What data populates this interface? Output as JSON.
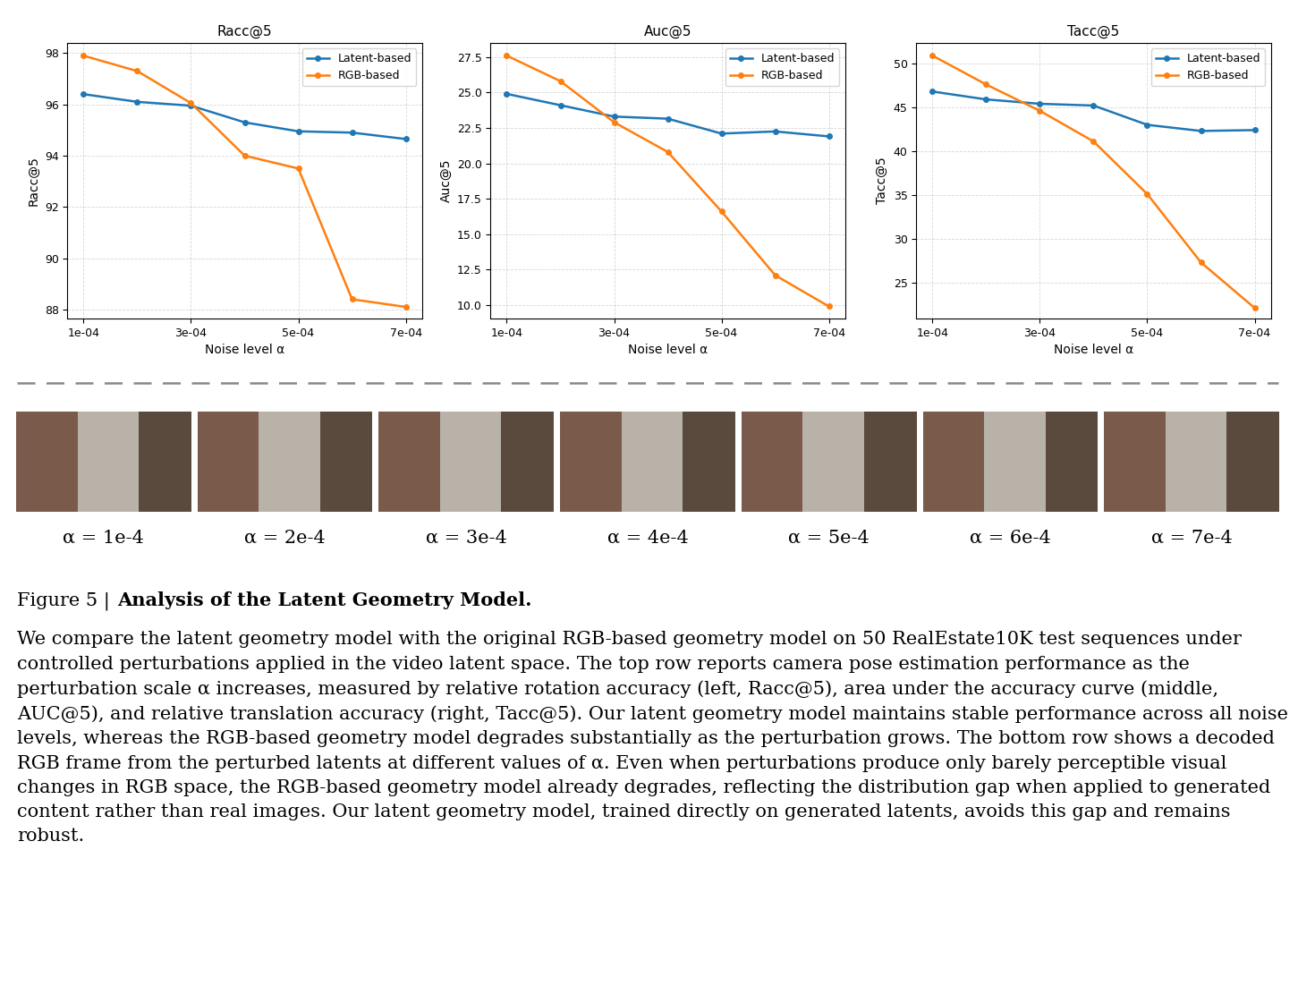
{
  "chart_data": [
    {
      "type": "line",
      "title": "Racc@5",
      "x_label": "Noise level α",
      "y_label": "Racc@5",
      "x": [
        0.0001,
        0.0002,
        0.0003,
        0.0004,
        0.0005,
        0.0006,
        0.0007
      ],
      "series": [
        {
          "name": "Latent-based",
          "color": "#1f77b4",
          "marker": "o",
          "values": [
            96.4,
            96.1,
            95.95,
            95.3,
            94.95,
            94.9,
            94.65
          ]
        },
        {
          "name": "RGB-based",
          "color": "#ff7f0e",
          "marker": "o",
          "values": [
            97.9,
            97.3,
            96.05,
            94.0,
            93.5,
            88.4,
            88.1
          ]
        }
      ],
      "xlim": [
        7e-05,
        0.00073
      ],
      "xticks": [
        {
          "value": 0.0001,
          "label": "1e-04"
        },
        {
          "value": 0.0003,
          "label": "3e-04"
        },
        {
          "value": 0.0005,
          "label": "5e-04"
        },
        {
          "value": 0.0007,
          "label": "7e-04"
        }
      ],
      "ylim": [
        87.65,
        98.4
      ],
      "yticks": [
        88,
        90,
        92,
        94,
        96,
        98
      ],
      "grid": true,
      "legend": "upper right"
    },
    {
      "type": "line",
      "title": "Auc@5",
      "x_label": "Noise level α",
      "y_label": "Auc@5",
      "x": [
        0.0001,
        0.0002,
        0.0003,
        0.0004,
        0.0005,
        0.0006,
        0.0007
      ],
      "series": [
        {
          "name": "Latent-based",
          "color": "#1f77b4",
          "marker": "o",
          "values": [
            24.9,
            24.1,
            23.3,
            23.15,
            22.1,
            22.25,
            21.9
          ]
        },
        {
          "name": "RGB-based",
          "color": "#ff7f0e",
          "marker": "o",
          "values": [
            27.6,
            25.8,
            22.9,
            20.8,
            16.6,
            12.1,
            9.9
          ]
        }
      ],
      "xlim": [
        7e-05,
        0.00073
      ],
      "xticks": [
        {
          "value": 0.0001,
          "label": "1e-04"
        },
        {
          "value": 0.0003,
          "label": "3e-04"
        },
        {
          "value": 0.0005,
          "label": "5e-04"
        },
        {
          "value": 0.0007,
          "label": "7e-04"
        }
      ],
      "ylim": [
        9.05,
        28.5
      ],
      "yticks": [
        {
          "value": 10,
          "label": "10.0"
        },
        12.5,
        {
          "value": 15,
          "label": "15.0"
        },
        17.5,
        {
          "value": 20,
          "label": "20.0"
        },
        22.5,
        {
          "value": 25,
          "label": "25.0"
        },
        27.5
      ],
      "grid": true,
      "legend": "upper right"
    },
    {
      "type": "line",
      "title": "Tacc@5",
      "x_label": "Noise level α",
      "y_label": "Tacc@5",
      "x": [
        0.0001,
        0.0002,
        0.0003,
        0.0004,
        0.0005,
        0.0006,
        0.0007
      ],
      "series": [
        {
          "name": "Latent-based",
          "color": "#1f77b4",
          "marker": "o",
          "values": [
            46.8,
            45.9,
            45.4,
            45.2,
            43.0,
            42.3,
            42.4
          ]
        },
        {
          "name": "RGB-based",
          "color": "#ff7f0e",
          "marker": "o",
          "values": [
            50.9,
            47.6,
            44.6,
            41.1,
            35.1,
            27.3,
            22.1
          ]
        }
      ],
      "xlim": [
        7e-05,
        0.00073
      ],
      "xticks": [
        {
          "value": 0.0001,
          "label": "1e-04"
        },
        {
          "value": 0.0003,
          "label": "3e-04"
        },
        {
          "value": 0.0005,
          "label": "5e-04"
        },
        {
          "value": 0.0007,
          "label": "7e-04"
        }
      ],
      "ylim": [
        20.9,
        52.35
      ],
      "yticks": [
        25,
        30,
        35,
        40,
        45,
        50
      ],
      "grid": true,
      "legend": "upper right"
    }
  ],
  "images": {
    "labels": [
      "α = 1e-4",
      "α = 2e-4",
      "α = 3e-4",
      "α = 4e-4",
      "α = 5e-4",
      "α = 6e-4",
      "α = 7e-4"
    ]
  },
  "caption": {
    "label": "Figure 5 |",
    "title": "Analysis of the Latent Geometry Model.",
    "text": "We compare the latent geometry model with the original RGB-based geometry model on 50 RealEstate10K test sequences under controlled perturbations applied in the video latent space. The top row reports camera pose estimation performance as the perturbation scale α increases, measured by relative rotation accuracy (left, Racc@5), area under the accuracy curve (middle, AUC@5), and relative translation accuracy (right, Tacc@5). Our latent geometry model maintains stable performance across all noise levels, whereas the RGB-based geometry model degrades substantially as the perturbation grows. The bottom row shows a decoded RGB frame from the perturbed latents at different values of α. Even when perturbations produce only barely perceptible visual changes in RGB space, the RGB-based geometry model already degrades, reflecting the distribution gap when applied to generated content rather than real images. Our latent geometry model, trained directly on generated latents, avoids this gap and remains robust."
  }
}
